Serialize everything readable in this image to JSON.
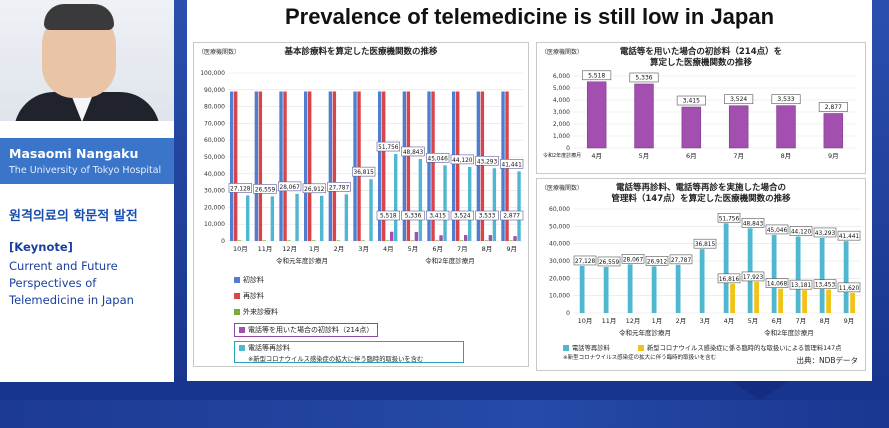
{
  "speaker": {
    "name": "Masaomi Nangaku",
    "affiliation": "The University of Tokyo Hospital",
    "session_title_ko": "원격의료의 학문적 발전",
    "keynote_label": "[Keynote]",
    "talk_title": "Current and Future Perspectives of Telemedicine in Japan"
  },
  "slide": {
    "title": "Prevalence of telemedicine is still low in Japan",
    "source": "出典：NDBデータ"
  },
  "colors": {
    "shoshin": "#4f7ed0",
    "saishin": "#d9434a",
    "gairai": "#7aaa3c",
    "denwa_shoshin": "#a24fb0",
    "denwa_saishin": "#4fb7cf",
    "kanri": "#f0c419",
    "frame": "#ffffff",
    "bg": "#234aa6"
  },
  "charts": [
    {
      "title": "基本診療料を算定した医療機関数の推移",
      "unit": "（医療機関数）",
      "type": "bar",
      "categories": [
        "10月",
        "11月",
        "12月",
        "1月",
        "2月",
        "3月",
        "4月",
        "5月",
        "6月",
        "7月",
        "8月",
        "9月"
      ],
      "group_labels": [
        "令和元年度診療月",
        "令和2年度診療月"
      ],
      "ylim": [
        0,
        100000
      ],
      "yticks": [
        "100,000",
        "90,000",
        "80,000",
        "70,000",
        "60,000",
        "50,000",
        "40,000",
        "30,000",
        "20,000",
        "10,000",
        "0"
      ],
      "series": [
        {
          "name": "初診料",
          "values": [
            89000,
            89000,
            89000,
            89000,
            89000,
            89000,
            89000,
            89000,
            89000,
            89000,
            89000,
            89000
          ]
        },
        {
          "name": "再診料",
          "values": [
            89000,
            89000,
            89000,
            89000,
            89000,
            89000,
            89000,
            89000,
            89000,
            89000,
            89000,
            89000
          ]
        },
        {
          "name": "外来診療料",
          "values": [
            400,
            400,
            400,
            400,
            400,
            400,
            400,
            400,
            400,
            400,
            400,
            400
          ]
        },
        {
          "name": "電話等を用いた場合の初診料（214点）",
          "values": [
            0,
            0,
            0,
            0,
            0,
            0,
            5518,
            5336,
            3415,
            3524,
            3533,
            2877
          ]
        },
        {
          "name": "電話等再診料",
          "values": [
            27128,
            26559,
            28067,
            26912,
            27787,
            36815,
            51756,
            48843,
            45046,
            44120,
            43293,
            41441
          ]
        }
      ],
      "labels_upper": [
        "27,128",
        "26,559",
        "28,067",
        "26,912",
        "27,787",
        "36,815",
        "51,756",
        "48,843",
        "45,046",
        "44,120",
        "43,293",
        "41,441"
      ],
      "labels_lower": [
        "",
        "",
        "",
        "",
        "",
        "",
        "5,518",
        "5,336",
        "3,415",
        "3,524",
        "3,533",
        "2,877"
      ],
      "legend": [
        "初診料",
        "再診料",
        "外来診療料",
        "電話等を用いた場合の初診料（214点）",
        "電話等再診料",
        "※新型コロナウイルス感染症の拡大に伴う臨時的取扱いを含む"
      ]
    },
    {
      "title_line1": "電話等を用いた場合の初診料（214点）を",
      "title_line2": "算定した医療機関数の推移",
      "unit": "（医療機関数）",
      "type": "bar",
      "categories": [
        "4月",
        "5月",
        "6月",
        "7月",
        "8月",
        "9月"
      ],
      "x_prefix": "令和2年度診療月",
      "ylim": [
        0,
        6000
      ],
      "yticks": [
        "6,000",
        "5,000",
        "4,000",
        "3,000",
        "2,000",
        "1,000",
        "0"
      ],
      "series": [
        {
          "name": "",
          "values": [
            5518,
            5336,
            3415,
            3524,
            3533,
            2877
          ]
        }
      ],
      "labels": [
        "5,518",
        "5,336",
        "3,415",
        "3,524",
        "3,533",
        "2,877"
      ]
    },
    {
      "title_line1": "電話等再診料、電話等再診を実施した場合の",
      "title_line2": "管理料（147点）を算定した医療機関数の推移",
      "unit": "（医療機関数）",
      "type": "bar",
      "categories": [
        "10月",
        "11月",
        "12月",
        "1月",
        "2月",
        "3月",
        "4月",
        "5月",
        "6月",
        "7月",
        "8月",
        "9月"
      ],
      "group_labels": [
        "令和元年度診療月",
        "令和2年度診療月"
      ],
      "ylim": [
        0,
        60000
      ],
      "yticks": [
        "60,000",
        "50,000",
        "40,000",
        "30,000",
        "20,000",
        "10,000",
        "0"
      ],
      "series": [
        {
          "name": "電話等再診料",
          "values": [
            27128,
            26559,
            28067,
            26912,
            27787,
            36815,
            51756,
            48843,
            45046,
            44120,
            43293,
            41441
          ]
        },
        {
          "name": "新型コロナウイルス感染症に係る臨時的な取扱いによる管理料147点",
          "values": [
            0,
            0,
            0,
            0,
            0,
            0,
            16816,
            17923,
            14068,
            13181,
            13453,
            11620
          ]
        }
      ],
      "labels_upper": [
        "27,128",
        "26,559",
        "28,067",
        "26,912",
        "27,787",
        "36,815",
        "51,756",
        "48,843",
        "45,046",
        "44,120",
        "43,293",
        "41,441"
      ],
      "labels_lower": [
        "",
        "",
        "",
        "",
        "",
        "",
        "16,816",
        "17,923",
        "14,068",
        "13,181",
        "13,453",
        "11,620"
      ],
      "legend": [
        "電話等再診料",
        "新型コロナウイルス感染症に係る臨時的な取扱いによる管理料147点"
      ],
      "note": "※新型コロナウイルス感染症の拡大に伴う臨時的取扱いを含む"
    }
  ]
}
